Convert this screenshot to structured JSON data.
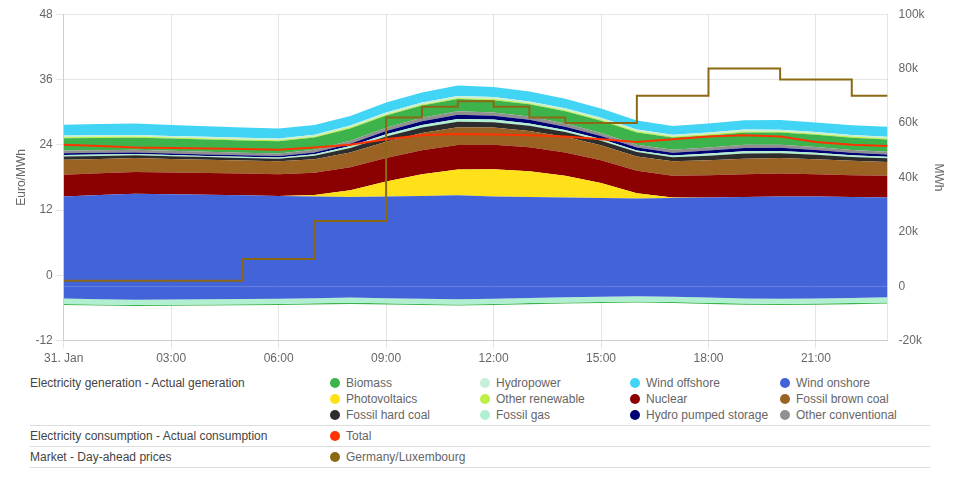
{
  "chart_data": {
    "type": "area",
    "x": [
      0,
      1,
      2,
      3,
      4,
      5,
      6,
      7,
      8,
      9,
      10,
      11,
      12,
      13,
      14,
      15,
      16,
      17,
      18,
      19,
      20,
      21,
      22,
      23
    ],
    "xlim": [
      0,
      23
    ],
    "xticks": [
      {
        "value": 0,
        "label": "31. Jan"
      },
      {
        "value": 3,
        "label": "03:00"
      },
      {
        "value": 6,
        "label": "06:00"
      },
      {
        "value": 9,
        "label": "09:00"
      },
      {
        "value": 12,
        "label": "12:00"
      },
      {
        "value": 15,
        "label": "15:00"
      },
      {
        "value": 18,
        "label": "18:00"
      },
      {
        "value": 21,
        "label": "21:00"
      }
    ],
    "ylabel": "Euro/MWh",
    "ylim": [
      -12,
      48
    ],
    "yticks": [
      -12,
      0,
      12,
      24,
      36,
      48
    ],
    "y2label": "MWh",
    "y2lim": [
      -20000,
      100000
    ],
    "y2ticks": [
      {
        "value": -20000,
        "label": "-20k"
      },
      0,
      {
        "value": 20000,
        "label": "20k"
      },
      {
        "value": 40000,
        "label": "40k"
      },
      {
        "value": 60000,
        "label": "60k"
      },
      {
        "value": 80000,
        "label": "80k"
      },
      {
        "value": 100000,
        "label": "100k"
      }
    ],
    "grid": true,
    "stacked": true,
    "series": [
      {
        "name": "Wind onshore",
        "type": "area",
        "axis": "y2",
        "color": "#4363d8",
        "values": [
          33000,
          33500,
          34000,
          33800,
          33600,
          33400,
          33200,
          33000,
          32800,
          33000,
          33200,
          33400,
          33000,
          32800,
          32600,
          32400,
          32200,
          32400,
          32600,
          32800,
          33000,
          33000,
          32800,
          32600
        ]
      },
      {
        "name": "Photovoltaics",
        "type": "area",
        "axis": "y2",
        "color": "#ffe119",
        "values": [
          0,
          0,
          0,
          0,
          0,
          0,
          0,
          500,
          2500,
          5500,
          8000,
          9500,
          10000,
          9500,
          8000,
          5500,
          2000,
          200,
          0,
          0,
          0,
          0,
          0,
          0
        ]
      },
      {
        "name": "Nuclear",
        "type": "area",
        "axis": "y2",
        "color": "#8B0000",
        "values": [
          8000,
          8000,
          8000,
          8000,
          8000,
          8000,
          8000,
          8200,
          8400,
          8600,
          8800,
          9000,
          9000,
          8800,
          8600,
          8400,
          8200,
          8000,
          8200,
          8400,
          8400,
          8200,
          8000,
          8000
        ]
      },
      {
        "name": "Fossil brown coal",
        "type": "area",
        "axis": "y2",
        "color": "#9a6324",
        "values": [
          5500,
          5300,
          5100,
          5000,
          4900,
          4800,
          4700,
          5000,
          5500,
          6000,
          6300,
          6500,
          6300,
          6000,
          5700,
          5500,
          5300,
          5300,
          5500,
          5700,
          5700,
          5500,
          5300,
          5100
        ]
      },
      {
        "name": "Fossil hard coal",
        "type": "area",
        "axis": "y2",
        "color": "#2d2d2d",
        "values": [
          1200,
          1100,
          1000,
          980,
          960,
          940,
          1000,
          1300,
          1600,
          1900,
          2000,
          2100,
          2000,
          1900,
          1800,
          1700,
          1600,
          1500,
          1700,
          1900,
          1800,
          1600,
          1400,
          1300
        ]
      },
      {
        "name": "Fossil gas",
        "type": "area",
        "axis": "y2",
        "color": "#b0f0d0",
        "values": [
          500,
          480,
          460,
          450,
          440,
          430,
          440,
          550,
          700,
          850,
          950,
          1000,
          950,
          850,
          750,
          650,
          630,
          680,
          750,
          850,
          830,
          720,
          650,
          600
        ]
      },
      {
        "name": "Hydro pumped storage",
        "type": "area",
        "axis": "y2",
        "color": "#000075",
        "values": [
          700,
          650,
          600,
          580,
          560,
          540,
          520,
          600,
          900,
          1200,
          1400,
          1500,
          1400,
          1300,
          1200,
          1100,
          1050,
          1000,
          1100,
          1200,
          1150,
          1050,
          900,
          800
        ]
      },
      {
        "name": "Other conventional",
        "type": "area",
        "axis": "y2",
        "color": "#909090",
        "values": [
          1000,
          980,
          960,
          950,
          940,
          930,
          940,
          1000,
          1100,
          1200,
          1250,
          1300,
          1250,
          1200,
          1150,
          1100,
          1060,
          1050,
          1100,
          1150,
          1130,
          1080,
          1050,
          1020
        ]
      },
      {
        "name": "Biomass",
        "type": "area",
        "axis": "y2",
        "color": "#3cb44b",
        "values": [
          4500,
          4500,
          4500,
          4500,
          4500,
          4500,
          4500,
          4500,
          4500,
          4500,
          4500,
          4500,
          4500,
          4500,
          4500,
          4500,
          4500,
          4500,
          4500,
          4500,
          4500,
          4500,
          4500,
          4500
        ]
      },
      {
        "name": "Other renewable",
        "type": "area",
        "axis": "y2",
        "color": "#bfef45",
        "values": [
          400,
          400,
          400,
          400,
          400,
          400,
          400,
          400,
          400,
          400,
          400,
          400,
          400,
          400,
          400,
          400,
          400,
          400,
          400,
          400,
          400,
          400,
          400,
          400
        ]
      },
      {
        "name": "Hydropower",
        "type": "area",
        "axis": "y2",
        "color": "#c8f0d8",
        "values": [
          600,
          600,
          600,
          600,
          600,
          600,
          600,
          650,
          700,
          750,
          750,
          750,
          750,
          700,
          700,
          650,
          650,
          650,
          700,
          700,
          650,
          600,
          600,
          600
        ]
      },
      {
        "name": "Wind offshore",
        "type": "area",
        "axis": "y2",
        "color": "#42d4f4",
        "values": [
          4000,
          4100,
          4200,
          4000,
          3900,
          3800,
          3700,
          3600,
          3500,
          3600,
          3700,
          3800,
          3700,
          3600,
          3500,
          3400,
          3300,
          3200,
          3300,
          3400,
          3500,
          3500,
          3600,
          3700
        ]
      },
      {
        "name": "Wind onshore",
        "type": "area",
        "axis": "y2",
        "color": "#4363d8",
        "values": [
          -4500,
          -4800,
          -5000,
          -4900,
          -4800,
          -4700,
          -4600,
          -4400,
          -4200,
          -4400,
          -4600,
          -4800,
          -4600,
          -4300,
          -4100,
          -3900,
          -3700,
          -3900,
          -4200,
          -4500,
          -4600,
          -4500,
          -4300,
          -4100
        ]
      },
      {
        "name": "Fossil gas",
        "type": "area",
        "axis": "y2",
        "color": "#b0f0d0",
        "values": [
          -2000,
          -1900,
          -1900,
          -1900,
          -1900,
          -1900,
          -1900,
          -1900,
          -1900,
          -1900,
          -1900,
          -1900,
          -1900,
          -1900,
          -1900,
          -1900,
          -1900,
          -1900,
          -1900,
          -1900,
          -1900,
          -1900,
          -1900,
          -1900
        ]
      },
      {
        "name": "Biomass",
        "type": "area",
        "axis": "y2",
        "color": "#3cb44b",
        "values": [
          -400,
          -400,
          -400,
          -400,
          -400,
          -400,
          -400,
          -400,
          -400,
          -400,
          -400,
          -400,
          -400,
          -400,
          -400,
          -400,
          -400,
          -400,
          -400,
          -400,
          -400,
          -400,
          -400,
          -400
        ]
      },
      {
        "name": "Total",
        "type": "line",
        "axis": "y2",
        "color": "#ff3300",
        "values": [
          52000,
          51500,
          51000,
          50800,
          50600,
          50400,
          50200,
          51000,
          52000,
          54000,
          55500,
          56000,
          55800,
          55500,
          55000,
          54000,
          53000,
          54000,
          55000,
          55500,
          55000,
          53000,
          52000,
          51500
        ]
      },
      {
        "name": "Germany/Luxembourg",
        "type": "line",
        "line_style": "steps",
        "color": "#8B6914",
        "values": [
          -1.0,
          -1.0,
          -1.0,
          -1.0,
          -1.0,
          -1.0,
          3.0,
          3.0,
          10.0,
          10.0,
          29.0,
          31.0,
          32.0,
          31.0,
          29.0,
          28.0,
          28.0,
          33.0,
          33.0,
          38.0,
          38.0,
          36.0,
          36.0,
          33.0
        ]
      }
    ],
    "annotations": [
      {
        "text": "Electricity generation - Actual generation",
        "items": [
          "Biomass",
          "Hydropower",
          "Wind offshore",
          "Wind onshore",
          "Photovoltaics",
          "Other renewable",
          "Nuclear",
          "Fossil brown coal",
          "Fossil hard coal",
          "Fossil gas",
          "Hydro pumped storage",
          "Other conventional"
        ]
      },
      {
        "text": "Electricity consumption - Actual consumption",
        "items": [
          "Total"
        ]
      },
      {
        "text": "Market - Day-ahead prices",
        "items": [
          "Germany/Luxembourg"
        ]
      }
    ]
  }
}
